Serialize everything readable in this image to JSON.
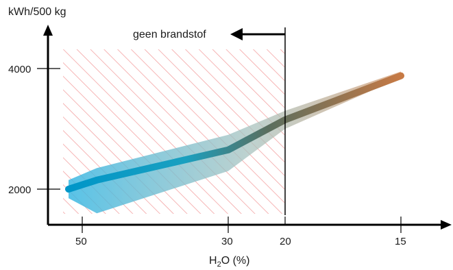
{
  "chart_data": {
    "type": "area",
    "ylabel": "kWh/500 kg",
    "xlabel_prefix": "H",
    "xlabel_sub": "2",
    "xlabel_suffix": "O (%)",
    "x_ticks": [
      "50",
      "30",
      "20",
      "15"
    ],
    "y_ticks": [
      "4000",
      "2000"
    ],
    "x_tick_values": [
      50,
      30,
      20,
      15
    ],
    "y_tick_values": [
      4000,
      2000
    ],
    "x_axis": "H2O moisture (%), decreasing to the right, non-linear",
    "threshold": {
      "x": 20,
      "label": "geen brandstof",
      "direction": "left"
    },
    "series": [
      {
        "x": [
          52,
          48,
          30,
          20,
          15
        ],
        "y": [
          2000,
          2150,
          2650,
          3150,
          3880
        ],
        "lower": [
          1850,
          1600,
          2300,
          3000,
          3850
        ],
        "upper": [
          2150,
          2350,
          2900,
          3300,
          3950
        ]
      }
    ],
    "grid": false,
    "colors": {
      "band_start": "#3bb8e3",
      "band_end": "#d9a27a",
      "line_start": "#0096c8",
      "line_end": "#c77a45",
      "hatch": "#f4a3a3",
      "axis": "#000000"
    }
  }
}
